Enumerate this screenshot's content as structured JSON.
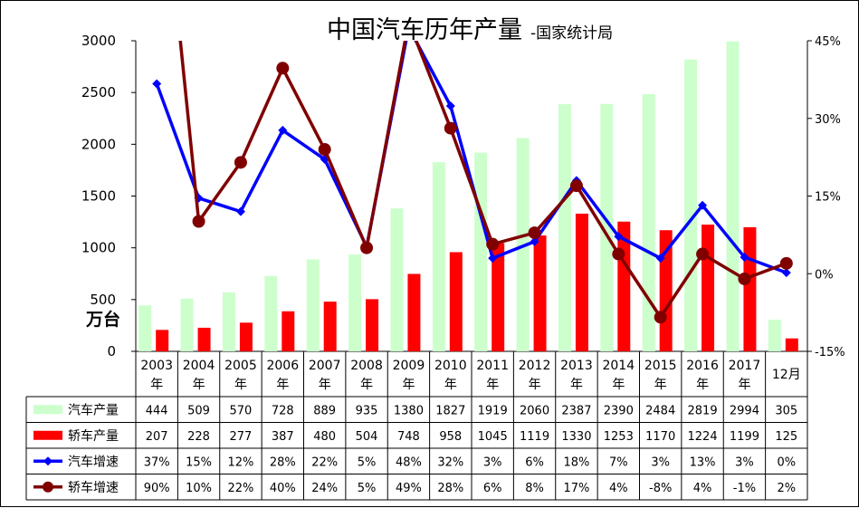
{
  "chart_data": {
    "type": "bar",
    "title": "中国汽车历年产量",
    "subtitle": "-国家统计局",
    "ylabel": "万台",
    "ylim": [
      0,
      3000
    ],
    "y_ticks": [
      "0",
      "500",
      "1000",
      "1500",
      "2000",
      "2500",
      "3000"
    ],
    "y2lim": [
      -15,
      45
    ],
    "y2_ticks": [
      "-15%",
      "0%",
      "15%",
      "30%",
      "45%"
    ],
    "categories": [
      [
        "2003",
        "年"
      ],
      [
        "2004",
        "年"
      ],
      [
        "2005",
        "年"
      ],
      [
        "2006",
        "年"
      ],
      [
        "2007",
        "年"
      ],
      [
        "2008",
        "年"
      ],
      [
        "2009",
        "年"
      ],
      [
        "2010",
        "年"
      ],
      [
        "2011",
        "年"
      ],
      [
        "2012",
        "年"
      ],
      [
        "2013",
        "年"
      ],
      [
        "2014",
        "年"
      ],
      [
        "2015",
        "年"
      ],
      [
        "2016",
        "年"
      ],
      [
        "2017",
        "年"
      ],
      [
        "12月",
        ""
      ]
    ],
    "series": [
      {
        "name": "汽车产量",
        "kind": "bar",
        "axis": "left",
        "color": "#ccffcc",
        "values": [
          444,
          509,
          570,
          728,
          889,
          935,
          1380,
          1827,
          1919,
          2060,
          2387,
          2390,
          2484,
          2819,
          2994,
          305
        ],
        "labels": [
          "444",
          "509",
          "570",
          "728",
          "889",
          "935",
          "1380",
          "1827",
          "1919",
          "2060",
          "2387",
          "2390",
          "2484",
          "2819",
          "2994",
          "305"
        ]
      },
      {
        "name": "轿车产量",
        "kind": "bar",
        "axis": "left",
        "color": "#ff0000",
        "values": [
          207,
          228,
          277,
          387,
          480,
          504,
          748,
          958,
          1045,
          1119,
          1330,
          1253,
          1170,
          1224,
          1199,
          125
        ],
        "labels": [
          "207",
          "228",
          "277",
          "387",
          "480",
          "504",
          "748",
          "958",
          "1045",
          "1119",
          "1330",
          "1253",
          "1170",
          "1224",
          "1199",
          "125"
        ]
      },
      {
        "name": "汽车增速",
        "kind": "line",
        "axis": "right",
        "color": "#0000ff",
        "marker": "diamond",
        "values": [
          36.7,
          14.6,
          12,
          27.7,
          22.1,
          5.2,
          47.6,
          32.4,
          3,
          6.2,
          18,
          7.2,
          3,
          13.2,
          3.2,
          0.2
        ],
        "labels": [
          "37%",
          "15%",
          "12%",
          "28%",
          "22%",
          "5%",
          "48%",
          "32%",
          "3%",
          "6%",
          "18%",
          "7%",
          "3%",
          "13%",
          "3%",
          "0%"
        ]
      },
      {
        "name": "轿车增速",
        "kind": "line",
        "axis": "right",
        "color": "#800000",
        "marker": "circle",
        "values": [
          89.7,
          10.1,
          21.5,
          39.7,
          24,
          5,
          48.7,
          28.1,
          5.7,
          7.9,
          17,
          3.8,
          -8.4,
          3.8,
          -1,
          2
        ],
        "labels": [
          "90%",
          "10%",
          "22%",
          "40%",
          "24%",
          "5%",
          "49%",
          "28%",
          "6%",
          "8%",
          "17%",
          "4%",
          "-8%",
          "4%",
          "-1%",
          "2%"
        ]
      }
    ],
    "legend_placement": "data-table-below"
  }
}
